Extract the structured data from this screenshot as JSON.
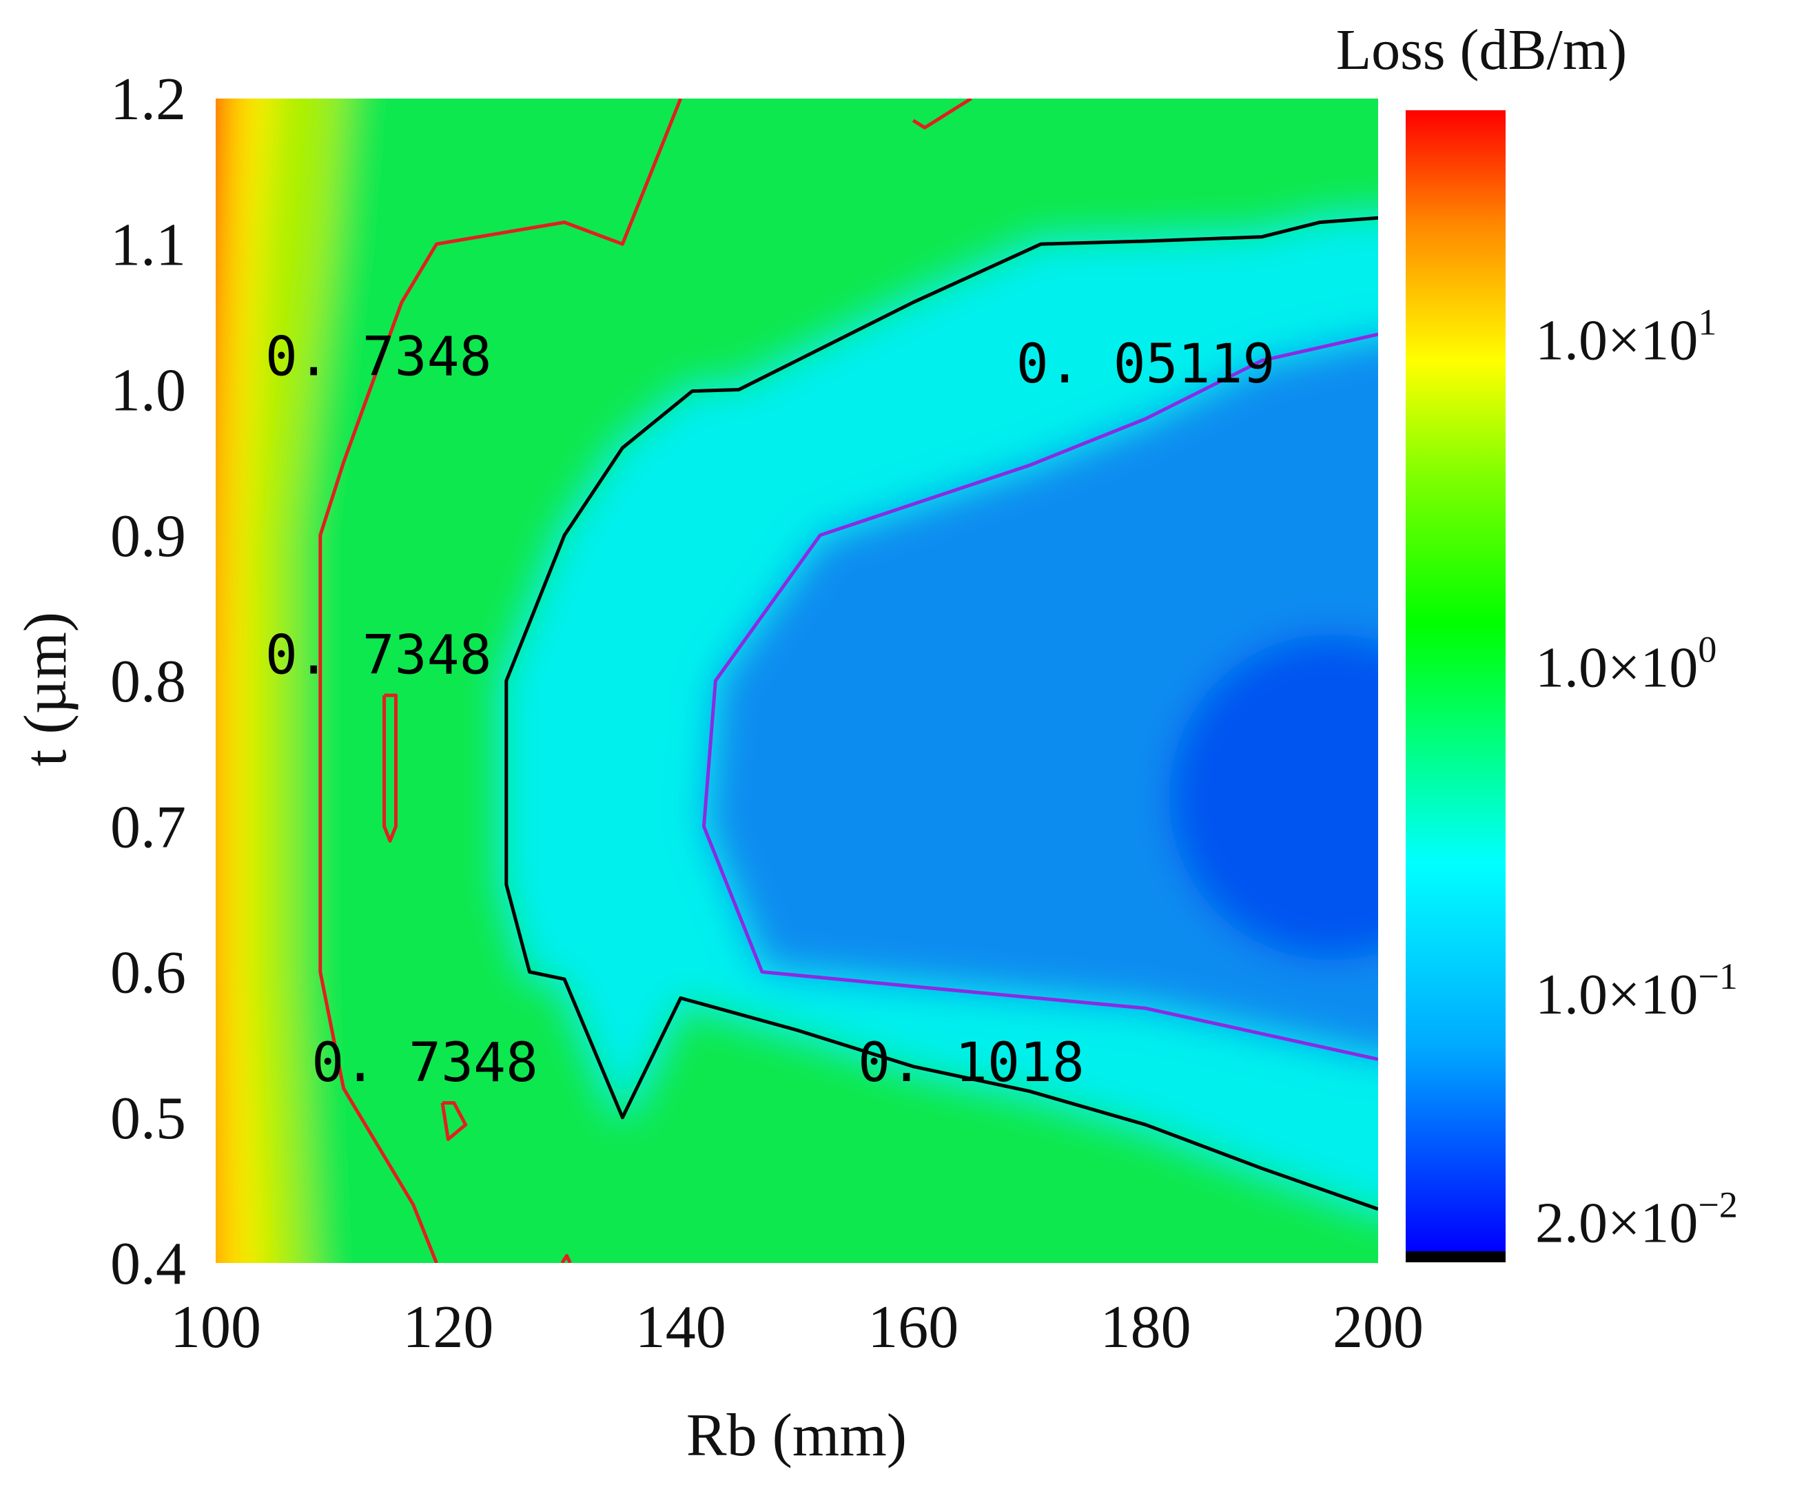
{
  "chart_data": {
    "type": "heatmap",
    "title": "",
    "xlabel": "Rb (mm)",
    "ylabel": "t (µm)",
    "xlim": [
      100,
      200
    ],
    "ylim": [
      0.4,
      1.2
    ],
    "x_ticks": [
      "100",
      "120",
      "140",
      "160",
      "180",
      "200"
    ],
    "y_ticks": [
      "0.4",
      "0.5",
      "0.6",
      "0.7",
      "0.8",
      "0.9",
      "1.0",
      "1.1",
      "1.2"
    ],
    "colorbar": {
      "title": "Loss (dB/m)",
      "scale": "log",
      "range": [
        0.015,
        50
      ],
      "ticks": [
        {
          "value": 10,
          "mantissa": "1.0×10",
          "exponent": "1"
        },
        {
          "value": 1,
          "mantissa": "1.0×10",
          "exponent": "0"
        },
        {
          "value": 0.1,
          "mantissa": "1.0×10",
          "exponent": "−1"
        },
        {
          "value": 0.02,
          "mantissa": "2.0×10",
          "exponent": "−2"
        }
      ],
      "colors": [
        "#000000",
        "#0000ff",
        "#00ffff",
        "#00ff00",
        "#ffff00",
        "#ff0000"
      ]
    },
    "contours": [
      {
        "level": 0.7348,
        "color": "#e02020",
        "paths": [
          [
            [
              119,
              0.4
            ],
            [
              117,
              0.44
            ],
            [
              111,
              0.52
            ],
            [
              109,
              0.6
            ],
            [
              109,
              0.9
            ],
            [
              111,
              0.95
            ],
            [
              116,
              1.06
            ],
            [
              119,
              1.1
            ],
            [
              130,
              1.115
            ],
            [
              135,
              1.1
            ],
            [
              140,
              1.2
            ]
          ],
          [
            [
              160,
              1.185
            ],
            [
              161,
              1.18
            ],
            [
              165,
              1.2
            ]
          ],
          [
            [
              114.5,
              0.79
            ],
            [
              115.5,
              0.79
            ],
            [
              115.5,
              0.7
            ],
            [
              115,
              0.69
            ],
            [
              114.5,
              0.7
            ],
            [
              114.5,
              0.79
            ]
          ],
          [
            [
              119.5,
              0.51
            ],
            [
              120.5,
              0.51
            ],
            [
              121.5,
              0.495
            ],
            [
              120,
              0.485
            ],
            [
              119.5,
              0.51
            ]
          ],
          [
            [
              129.8,
              0.4
            ],
            [
              130.2,
              0.405
            ],
            [
              130.5,
              0.4
            ]
          ]
        ]
      },
      {
        "level": 0.1018,
        "color": "#000000",
        "paths": [
          [
            [
              200,
              1.118
            ],
            [
              195,
              1.115
            ],
            [
              190,
              1.105
            ],
            [
              180,
              1.102
            ],
            [
              171,
              1.1
            ],
            [
              160,
              1.06
            ],
            [
              150,
              1.02
            ],
            [
              145,
              1.0
            ],
            [
              141,
              0.999
            ],
            [
              135,
              0.96
            ],
            [
              130,
              0.9
            ],
            [
              125,
              0.8
            ],
            [
              125,
              0.7
            ],
            [
              125,
              0.66
            ],
            [
              127,
              0.6
            ],
            [
              130,
              0.595
            ],
            [
              135,
              0.5
            ],
            [
              140,
              0.582
            ],
            [
              150,
              0.56
            ],
            [
              160,
              0.535
            ],
            [
              170,
              0.518
            ],
            [
              180,
              0.495
            ],
            [
              190,
              0.465
            ],
            [
              200,
              0.437
            ]
          ]
        ]
      },
      {
        "level": 0.05119,
        "color": "#8a2be2",
        "paths": [
          [
            [
              200,
              1.038
            ],
            [
              190,
              1.02
            ],
            [
              180,
              0.98
            ],
            [
              170,
              0.948
            ],
            [
              152,
              0.9
            ],
            [
              143,
              0.8
            ],
            [
              142,
              0.7
            ],
            [
              147,
              0.6
            ],
            [
              160,
              0.59
            ],
            [
              180,
              0.575
            ],
            [
              200,
              0.54
            ]
          ]
        ]
      }
    ],
    "contour_labels": [
      {
        "text": "0. 7348",
        "x": 114,
        "y": 1.01
      },
      {
        "text": "0. 7348",
        "x": 114,
        "y": 0.805
      },
      {
        "text": "0. 7348",
        "x": 118,
        "y": 0.525
      },
      {
        "text": "0. 05119",
        "x": 180,
        "y": 1.005
      },
      {
        "text": "0. 1018",
        "x": 165,
        "y": 0.525
      }
    ]
  }
}
